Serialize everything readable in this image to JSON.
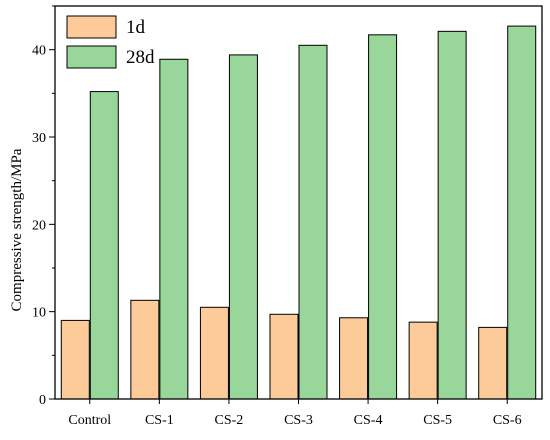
{
  "chart_data": {
    "type": "bar",
    "title": "",
    "xlabel": "",
    "ylabel": "Compressive strength/MPa",
    "ylim": [
      0,
      45
    ],
    "yticks": [
      0,
      10,
      20,
      30,
      40
    ],
    "grid": false,
    "legend_position": "top-left",
    "categories": [
      "Control",
      "CS-1",
      "CS-2",
      "CS-3",
      "CS-4",
      "CS-5",
      "CS-6"
    ],
    "series": [
      {
        "name": "1d",
        "color": "#fdcb99",
        "values": [
          9.0,
          11.3,
          10.5,
          9.7,
          9.3,
          8.8,
          8.2
        ]
      },
      {
        "name": "28d",
        "color": "#99d699",
        "values": [
          35.2,
          38.9,
          39.4,
          40.5,
          41.7,
          42.1,
          42.7
        ]
      }
    ]
  }
}
